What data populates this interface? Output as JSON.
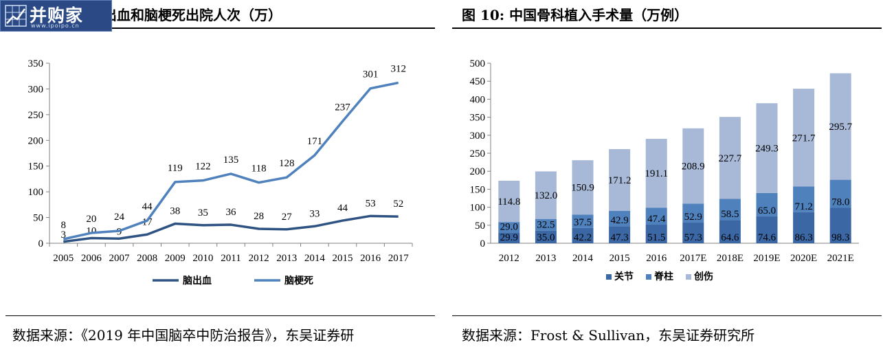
{
  "left": {
    "title": "出血和脑梗死出院人次（万）",
    "source": "数据来源：《2019 年中国脑卒中防治报告》，东吴证券研"
  },
  "right": {
    "title": "图 10:  中国骨科植入手术量（万例）",
    "source": "数据来源：Frost & Sullivan，东吴证券研究所"
  },
  "logo": {
    "text": "并购家",
    "url": "www.ipoipo.cn"
  },
  "chart_data": [
    {
      "type": "line",
      "title": "",
      "x": [
        "2005",
        "2006",
        "2007",
        "2008",
        "2009",
        "2010",
        "2011",
        "2012",
        "2013",
        "2014",
        "2015",
        "2016",
        "2017"
      ],
      "series": [
        {
          "name": "脑出血",
          "color": "#2e5383",
          "values": [
            3,
            10,
            9,
            17,
            38,
            35,
            36,
            28,
            27,
            33,
            44,
            53,
            52
          ]
        },
        {
          "name": "脑梗死",
          "color": "#4f81bd",
          "values": [
            8,
            20,
            24,
            44,
            119,
            122,
            135,
            118,
            128,
            171,
            237,
            301,
            312
          ]
        }
      ],
      "yticks": [
        0,
        50,
        100,
        150,
        200,
        250,
        300,
        350
      ],
      "ylim": [
        0,
        350
      ],
      "legend": "bottom",
      "grid": false
    },
    {
      "type": "bar",
      "stacked": true,
      "title": "",
      "categories": [
        "2012",
        "2013",
        "2014",
        "2015",
        "2016",
        "2017E",
        "2018E",
        "2019E",
        "2020E",
        "2021E"
      ],
      "series": [
        {
          "name": "关节",
          "color": "#3b67a5",
          "values": [
            29.9,
            35.0,
            42.2,
            47.3,
            51.5,
            57.3,
            64.6,
            74.6,
            86.3,
            98.3
          ]
        },
        {
          "name": "脊柱",
          "color": "#4f81bd",
          "values": [
            29.0,
            32.5,
            37.5,
            42.9,
            47.4,
            52.9,
            58.5,
            65.0,
            71.2,
            78.0
          ]
        },
        {
          "name": "创伤",
          "color": "#a8b9d7",
          "values": [
            114.8,
            132.0,
            150.9,
            171.2,
            191.1,
            208.9,
            227.7,
            249.3,
            271.7,
            295.7
          ]
        }
      ],
      "yticks": [
        0,
        50,
        100,
        150,
        200,
        250,
        300,
        350,
        400,
        450,
        500
      ],
      "ylim": [
        0,
        500
      ],
      "legend": "bottom",
      "grid": false
    }
  ]
}
